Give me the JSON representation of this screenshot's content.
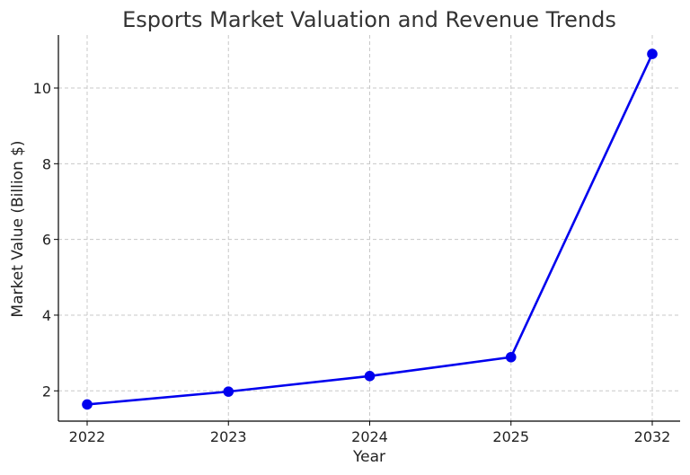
{
  "chart_data": {
    "type": "line",
    "title": "Esports Market Valuation and Revenue Trends",
    "xlabel": "Year",
    "ylabel": "Market Value (Billion $)",
    "categories": [
      "2022",
      "2023",
      "2024",
      "2025",
      "2032"
    ],
    "series": [
      {
        "name": "",
        "values": [
          1.64,
          1.98,
          2.39,
          2.89,
          10.9
        ],
        "color": "#0000ee",
        "marker": "circle"
      }
    ],
    "ylim": [
      1.2,
      11.4
    ],
    "yticks": [
      2,
      4,
      6,
      8,
      10
    ],
    "grid": true,
    "legend": "none"
  }
}
